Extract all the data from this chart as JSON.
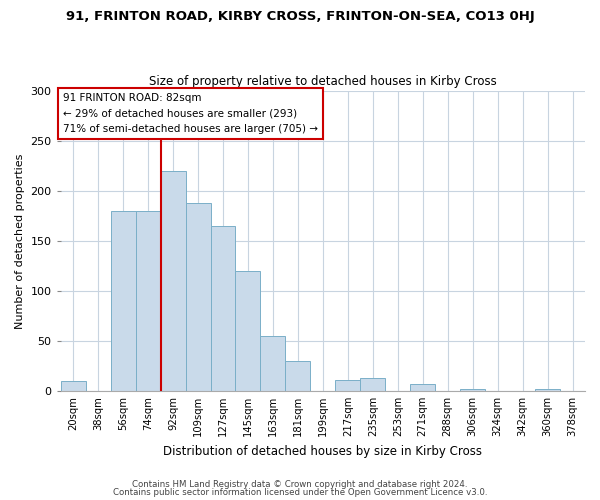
{
  "title": "91, FRINTON ROAD, KIRBY CROSS, FRINTON-ON-SEA, CO13 0HJ",
  "subtitle": "Size of property relative to detached houses in Kirby Cross",
  "xlabel": "Distribution of detached houses by size in Kirby Cross",
  "ylabel": "Number of detached properties",
  "bin_labels": [
    "20sqm",
    "38sqm",
    "56sqm",
    "74sqm",
    "92sqm",
    "109sqm",
    "127sqm",
    "145sqm",
    "163sqm",
    "181sqm",
    "199sqm",
    "217sqm",
    "235sqm",
    "253sqm",
    "271sqm",
    "288sqm",
    "306sqm",
    "324sqm",
    "342sqm",
    "360sqm",
    "378sqm"
  ],
  "bar_heights": [
    10,
    0,
    180,
    180,
    220,
    188,
    165,
    120,
    55,
    30,
    0,
    11,
    13,
    0,
    7,
    0,
    2,
    0,
    0,
    2,
    0
  ],
  "bar_color": "#c9daea",
  "bar_edge_color": "#7aafc8",
  "vline_x_index": 4,
  "vline_color": "#cc0000",
  "annotation_text": "91 FRINTON ROAD: 82sqm\n← 29% of detached houses are smaller (293)\n71% of semi-detached houses are larger (705) →",
  "annotation_box_edge": "#cc0000",
  "ylim": [
    0,
    300
  ],
  "yticks": [
    0,
    50,
    100,
    150,
    200,
    250,
    300
  ],
  "footer1": "Contains HM Land Registry data © Crown copyright and database right 2024.",
  "footer2": "Contains public sector information licensed under the Open Government Licence v3.0.",
  "background_color": "#ffffff",
  "grid_color": "#c8d4e0",
  "figsize": [
    6.0,
    5.0
  ],
  "dpi": 100
}
